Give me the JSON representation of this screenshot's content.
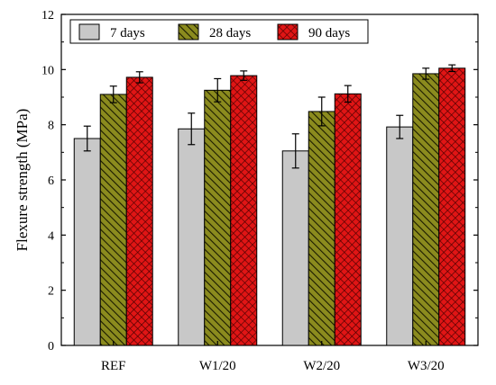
{
  "chart_data": {
    "type": "bar",
    "categories": [
      "REF",
      "W1/20",
      "W2/20",
      "W3/20"
    ],
    "series": [
      {
        "name": "7 days",
        "values": [
          7.5,
          7.85,
          7.05,
          7.92
        ],
        "errors": [
          0.45,
          0.57,
          0.62,
          0.42
        ],
        "fill": "#c8c8c8",
        "pattern": "solid"
      },
      {
        "name": "28 days",
        "values": [
          9.1,
          9.25,
          8.48,
          9.85
        ],
        "errors": [
          0.3,
          0.42,
          0.52,
          0.2
        ],
        "fill": "#8b8b1e",
        "pattern": "diagonal-hatch"
      },
      {
        "name": "90 days",
        "values": [
          9.72,
          9.78,
          9.12,
          10.05
        ],
        "errors": [
          0.2,
          0.17,
          0.3,
          0.12
        ],
        "fill": "#e01515",
        "pattern": "crosshatch"
      }
    ],
    "title": "",
    "xlabel": "",
    "ylabel": "Flexure strength (MPa)",
    "ylim": [
      0,
      12
    ],
    "yticks": [
      0,
      2,
      4,
      6,
      8,
      10,
      12
    ],
    "grid": false,
    "legend_position": "top-left",
    "legend_orientation": "horizontal",
    "error_bars": true
  }
}
